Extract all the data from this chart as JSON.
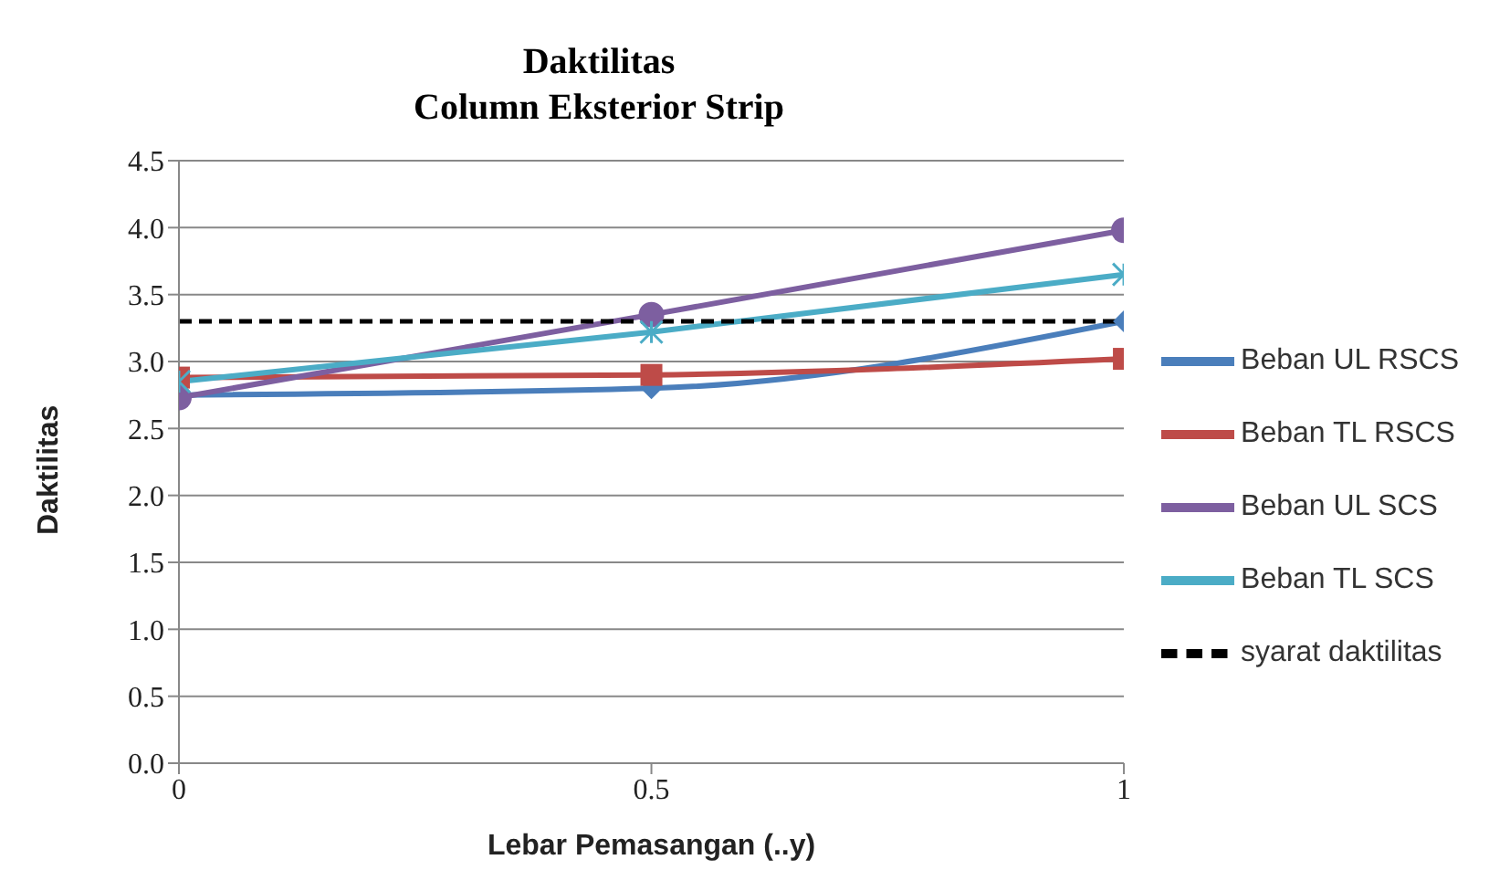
{
  "chart_data": {
    "type": "line",
    "title": "Daktilitas",
    "subtitle": "Column Eksterior Strip",
    "xlabel": "Lebar Pemasangan (..y)",
    "ylabel": "Daktilitas",
    "x": [
      0,
      0.5,
      1
    ],
    "series": [
      {
        "name": "Beban UL RSCS",
        "color": "#4a7ebb",
        "values": [
          2.75,
          2.8,
          3.3
        ],
        "marker": "diamond"
      },
      {
        "name": "Beban TL RSCS",
        "color": "#be4b48",
        "values": [
          2.88,
          2.9,
          3.02
        ],
        "marker": "square"
      },
      {
        "name": "Beban UL SCS",
        "color": "#7d5fa0",
        "values": [
          2.73,
          3.35,
          3.98
        ],
        "marker": "circle"
      },
      {
        "name": "Beban TL SCS",
        "color": "#4bacc6",
        "values": [
          2.85,
          3.22,
          3.65
        ],
        "marker": "cross"
      },
      {
        "name": "syarat daktilitas",
        "color": "#000000",
        "values": [
          3.3,
          3.3,
          3.3
        ],
        "marker": "none",
        "line_style": "dashed"
      }
    ],
    "xlim": [
      0,
      1
    ],
    "xticks": [
      0,
      0.5,
      1
    ],
    "ylim": [
      0,
      4.5
    ],
    "yticks": [
      {
        "value": 0,
        "label": "0.0"
      },
      {
        "value": 0.5,
        "label": "0.5"
      },
      {
        "value": 1,
        "label": "1.0"
      },
      {
        "value": 1.5,
        "label": "1.5"
      },
      {
        "value": 2,
        "label": "2.0"
      },
      {
        "value": 2.5,
        "label": "2.5"
      },
      {
        "value": 3,
        "label": "3.0"
      },
      {
        "value": 3.5,
        "label": "3.5"
      },
      {
        "value": 4,
        "label": "4.0"
      },
      {
        "value": 4.5,
        "label": "4.5"
      }
    ],
    "grid": "y",
    "legend": "right"
  }
}
